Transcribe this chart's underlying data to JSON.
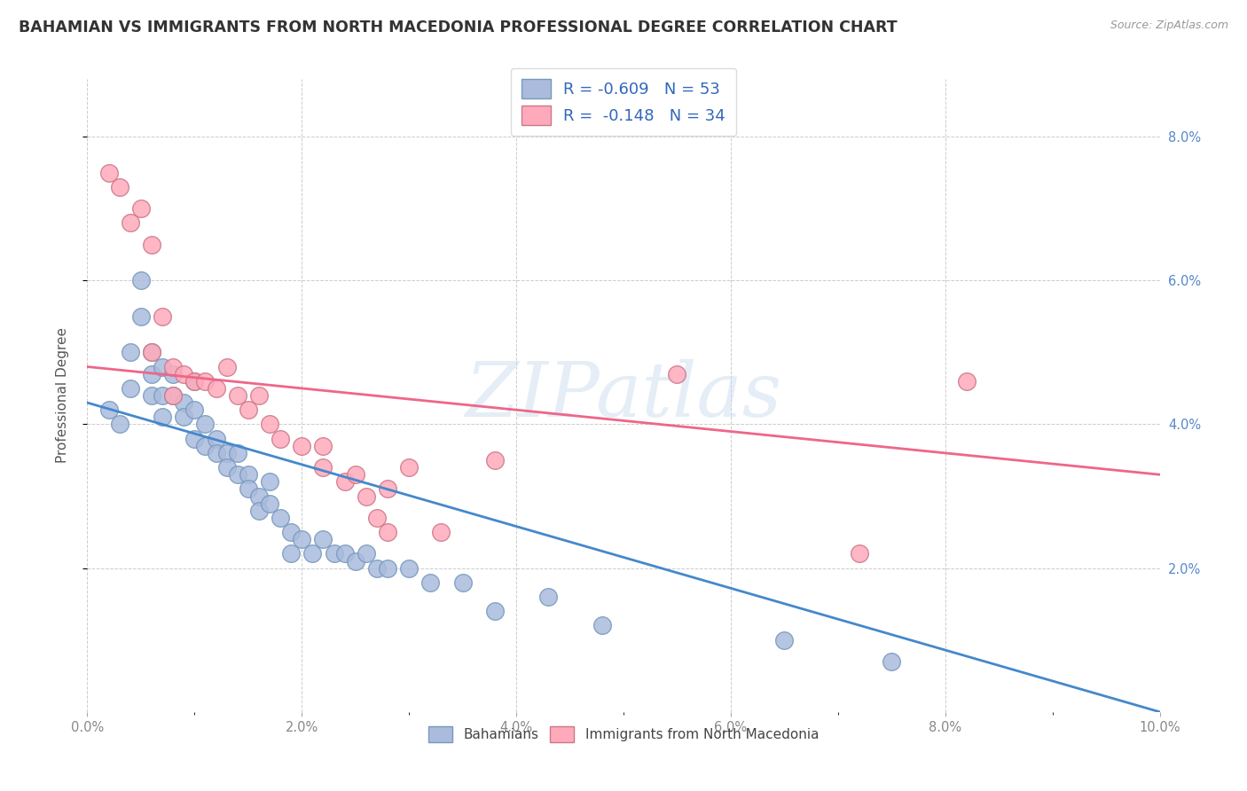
{
  "title": "BAHAMIAN VS IMMIGRANTS FROM NORTH MACEDONIA PROFESSIONAL DEGREE CORRELATION CHART",
  "source": "Source: ZipAtlas.com",
  "ylabel": "Professional Degree",
  "xlim": [
    0.0,
    0.1
  ],
  "ylim": [
    0.0,
    0.088
  ],
  "background_color": "#ffffff",
  "grid_color": "#cccccc",
  "blue_color": "#aabbdd",
  "pink_color": "#ffaabb",
  "blue_line_color": "#4488cc",
  "pink_line_color": "#ee6688",
  "legend_text_color": "#3366bb",
  "title_fontsize": 12.5,
  "label_fontsize": 11,
  "tick_fontsize": 10.5,
  "blue_scatter_x": [
    0.002,
    0.003,
    0.004,
    0.004,
    0.005,
    0.005,
    0.006,
    0.006,
    0.006,
    0.007,
    0.007,
    0.007,
    0.008,
    0.008,
    0.009,
    0.009,
    0.01,
    0.01,
    0.01,
    0.011,
    0.011,
    0.012,
    0.012,
    0.013,
    0.013,
    0.014,
    0.014,
    0.015,
    0.015,
    0.016,
    0.016,
    0.017,
    0.017,
    0.018,
    0.019,
    0.019,
    0.02,
    0.021,
    0.022,
    0.023,
    0.024,
    0.025,
    0.026,
    0.027,
    0.028,
    0.03,
    0.032,
    0.035,
    0.038,
    0.043,
    0.048,
    0.065,
    0.075
  ],
  "blue_scatter_y": [
    0.042,
    0.04,
    0.05,
    0.045,
    0.06,
    0.055,
    0.05,
    0.047,
    0.044,
    0.048,
    0.044,
    0.041,
    0.047,
    0.044,
    0.043,
    0.041,
    0.046,
    0.042,
    0.038,
    0.04,
    0.037,
    0.038,
    0.036,
    0.036,
    0.034,
    0.036,
    0.033,
    0.033,
    0.031,
    0.03,
    0.028,
    0.032,
    0.029,
    0.027,
    0.025,
    0.022,
    0.024,
    0.022,
    0.024,
    0.022,
    0.022,
    0.021,
    0.022,
    0.02,
    0.02,
    0.02,
    0.018,
    0.018,
    0.014,
    0.016,
    0.012,
    0.01,
    0.007
  ],
  "pink_scatter_x": [
    0.002,
    0.003,
    0.004,
    0.005,
    0.006,
    0.006,
    0.007,
    0.008,
    0.008,
    0.009,
    0.01,
    0.011,
    0.012,
    0.013,
    0.014,
    0.015,
    0.016,
    0.017,
    0.018,
    0.02,
    0.022,
    0.022,
    0.024,
    0.025,
    0.026,
    0.027,
    0.028,
    0.028,
    0.03,
    0.033,
    0.038,
    0.055,
    0.072,
    0.082
  ],
  "pink_scatter_y": [
    0.075,
    0.073,
    0.068,
    0.07,
    0.065,
    0.05,
    0.055,
    0.048,
    0.044,
    0.047,
    0.046,
    0.046,
    0.045,
    0.048,
    0.044,
    0.042,
    0.044,
    0.04,
    0.038,
    0.037,
    0.037,
    0.034,
    0.032,
    0.033,
    0.03,
    0.027,
    0.031,
    0.025,
    0.034,
    0.025,
    0.035,
    0.047,
    0.022,
    0.046
  ],
  "blue_trendline": [
    0.043,
    0.0
  ],
  "pink_trendline": [
    0.048,
    0.033
  ]
}
